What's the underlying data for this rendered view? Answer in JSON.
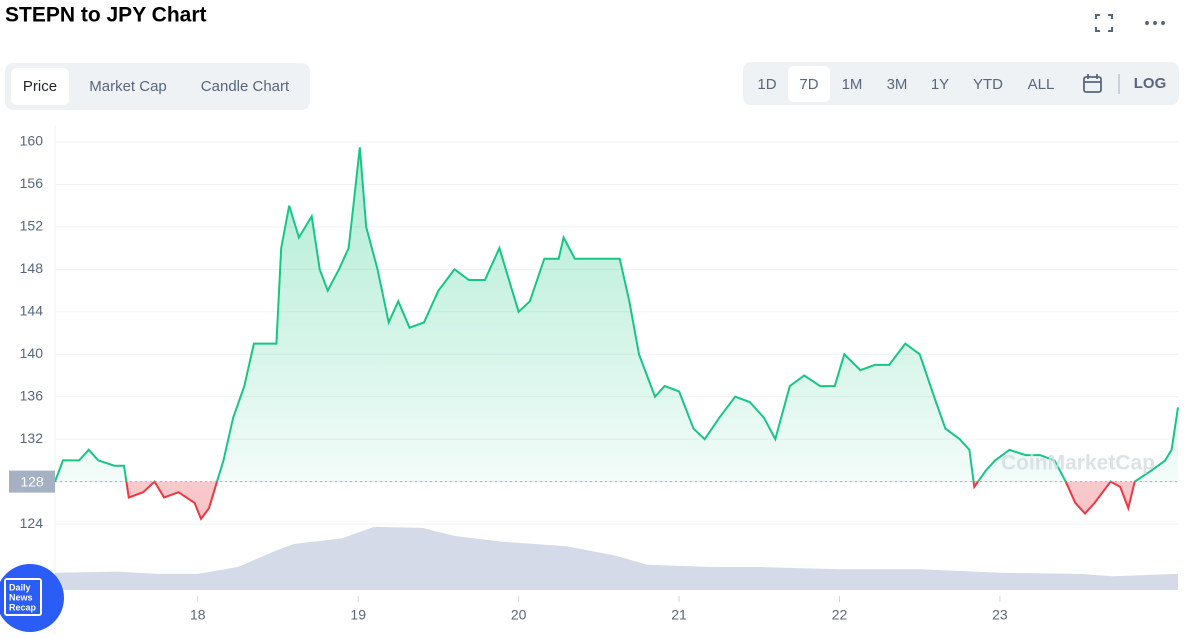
{
  "ui": {
    "title": "STEPN to JPY Chart",
    "tabs": [
      "Price",
      "Market Cap",
      "Candle Chart"
    ],
    "active_tab": 0,
    "ranges": [
      "1D",
      "7D",
      "1M",
      "3M",
      "1Y",
      "YTD",
      "ALL"
    ],
    "active_range": 1,
    "log_button": "LOG",
    "watermark": "CoinMarketCap",
    "badge": [
      "Daily",
      "News",
      "Recap"
    ]
  },
  "chart_data": {
    "type": "line",
    "series": [
      {
        "name": "Price",
        "color": "#16c784",
        "below_color": "#ea3943",
        "x": [
          17.11,
          17.16,
          17.26,
          17.32,
          17.38,
          17.48,
          17.54,
          17.57,
          17.66,
          17.73,
          17.79,
          17.88,
          17.98,
          18.02,
          18.07,
          18.12,
          18.16,
          18.22,
          18.29,
          18.35,
          18.44,
          18.49,
          18.52,
          18.57,
          18.63,
          18.71,
          18.76,
          18.81,
          18.88,
          18.94,
          18.97,
          19.01,
          19.05,
          19.12,
          19.19,
          19.25,
          19.32,
          19.41,
          19.5,
          19.6,
          19.69,
          19.79,
          19.88,
          19.94,
          20.0,
          20.07,
          20.16,
          20.25,
          20.28,
          20.35,
          20.41,
          20.5,
          20.63,
          20.69,
          20.75,
          20.85,
          20.91,
          21.0,
          21.09,
          21.16,
          21.25,
          21.35,
          21.44,
          21.53,
          21.6,
          21.69,
          21.78,
          21.88,
          21.97,
          22.03,
          22.13,
          22.22,
          22.31,
          22.41,
          22.5,
          22.59,
          22.66,
          22.75,
          22.81,
          22.84,
          22.91,
          22.97,
          23.06,
          23.16,
          23.25,
          23.34,
          23.41,
          23.47,
          23.53,
          23.59,
          23.69,
          23.75,
          23.8,
          23.84,
          23.94,
          24.03,
          24.07,
          24.11
        ],
        "values": [
          128,
          130,
          130,
          131,
          130,
          129.5,
          129.5,
          126.5,
          127,
          128,
          126.5,
          127,
          126,
          124.5,
          125.5,
          128,
          130,
          134,
          137,
          141,
          141,
          141,
          150,
          154,
          151,
          153,
          148,
          146,
          148,
          150,
          154,
          159.5,
          152,
          148,
          143,
          145,
          142.5,
          143,
          146,
          148,
          147,
          147,
          150,
          147,
          144,
          145,
          149,
          149,
          151,
          149,
          149,
          149,
          149,
          145,
          140,
          136,
          137,
          136.5,
          133,
          132,
          134,
          136,
          135.5,
          134,
          132,
          137,
          138,
          137,
          137,
          140,
          138.5,
          139,
          139,
          141,
          140,
          136,
          133,
          132,
          131,
          127.5,
          129,
          130,
          131,
          130.5,
          130.5,
          130,
          128,
          126,
          125,
          126,
          128,
          127.5,
          125.5,
          128,
          129,
          130,
          131,
          135
        ]
      },
      {
        "name": "Volume",
        "axis": "y2",
        "color": "#cfd6e4",
        "x": [
          17.11,
          17.5,
          17.75,
          18.0,
          18.25,
          18.5,
          18.6,
          18.9,
          19.1,
          19.4,
          19.6,
          19.9,
          20.3,
          20.6,
          20.8,
          21.2,
          21.5,
          22.0,
          22.5,
          23.0,
          23.5,
          23.7,
          24.11
        ],
        "values": [
          15,
          16,
          14,
          14,
          20,
          35,
          40,
          45,
          55,
          54,
          47,
          42,
          38,
          30,
          22,
          20,
          20,
          18,
          18,
          15,
          14,
          12,
          14
        ]
      }
    ],
    "xlim": [
      17.11,
      24.11
    ],
    "xticks": [
      18,
      19,
      20,
      21,
      22,
      23
    ],
    "ylim": [
      122.5,
      161.6
    ],
    "yticks": [
      124,
      128,
      132,
      136,
      140,
      144,
      148,
      152,
      156,
      160
    ],
    "y2lim": [
      0,
      100
    ],
    "baseline": 128,
    "grid": true
  }
}
